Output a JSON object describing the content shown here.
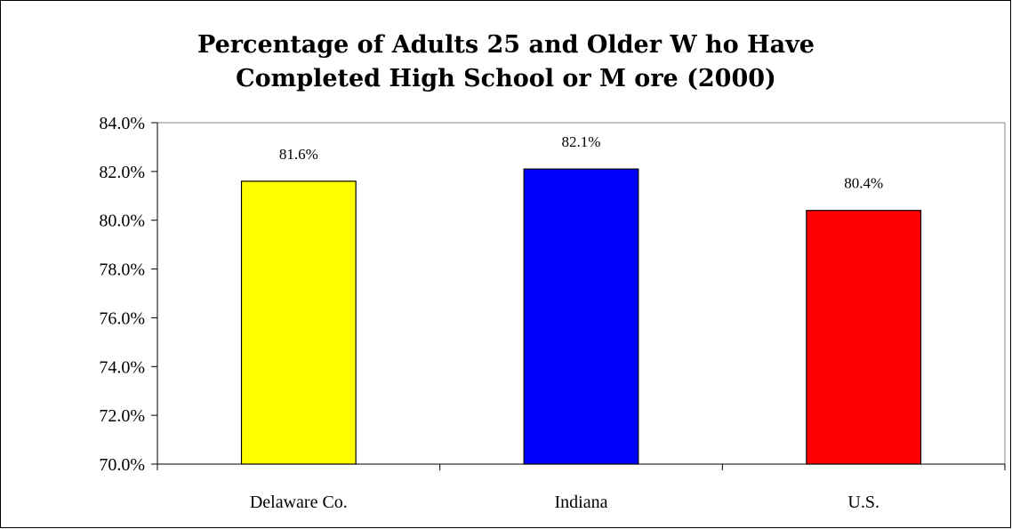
{
  "chart_data": {
    "type": "bar",
    "title_lines": [
      "Percentage of Adults 25 and Older W ho Have",
      "Completed High School or M ore (2000)"
    ],
    "categories": [
      "Delaware Co.",
      "Indiana",
      "U.S."
    ],
    "values": [
      81.6,
      82.1,
      80.4
    ],
    "data_labels": [
      "81.6%",
      "82.1%",
      "80.4%"
    ],
    "colors": [
      "#ffff00",
      "#0000ff",
      "#ff0000"
    ],
    "ylim": [
      70.0,
      84.0
    ],
    "yticks": [
      70.0,
      72.0,
      74.0,
      76.0,
      78.0,
      80.0,
      82.0,
      84.0
    ],
    "ytick_labels": [
      "70.0%",
      "72.0%",
      "74.0%",
      "76.0%",
      "78.0%",
      "80.0%",
      "82.0%",
      "84.0%"
    ],
    "xlabel": "",
    "ylabel": "",
    "grid": false,
    "legend": "none"
  }
}
